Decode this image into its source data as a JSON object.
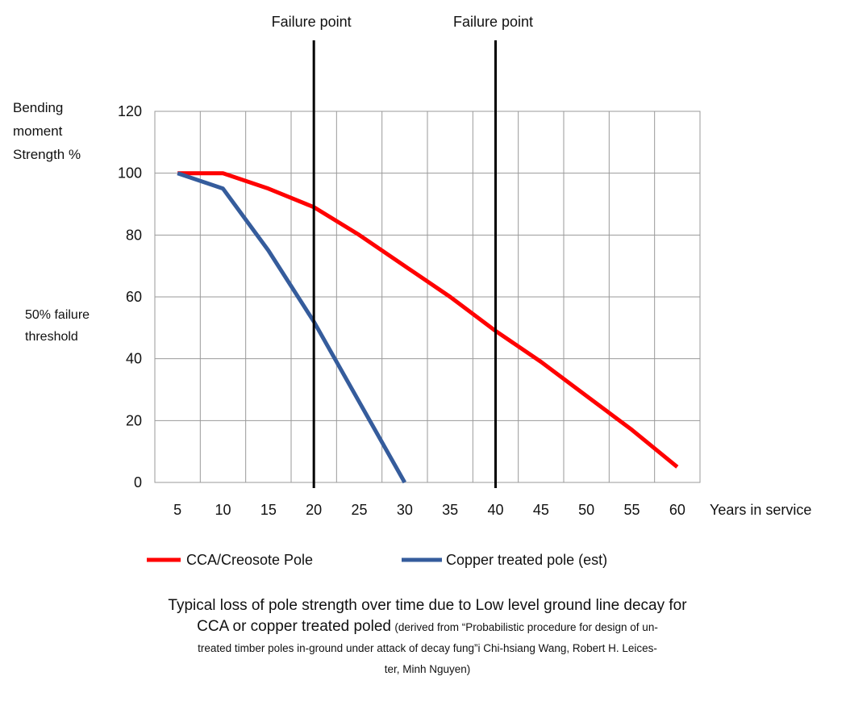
{
  "chart_data": {
    "type": "line",
    "x_label": "Years in service",
    "y_label_lines": [
      "Bending",
      "moment",
      "Strength %"
    ],
    "x_ticks": [
      5,
      10,
      15,
      20,
      25,
      30,
      35,
      40,
      45,
      50,
      55,
      60
    ],
    "y_ticks": [
      0,
      20,
      40,
      60,
      80,
      100,
      120
    ],
    "xlim": [
      2.5,
      62.5
    ],
    "ylim": [
      0,
      120
    ],
    "grid": true,
    "series": [
      {
        "name": "CCA/Creosote Pole",
        "color": "#ff0000",
        "x": [
          5,
          10,
          15,
          20,
          25,
          30,
          35,
          40,
          45,
          50,
          55,
          60
        ],
        "y": [
          100,
          100,
          95,
          89,
          80,
          70,
          60,
          49,
          39,
          28,
          17,
          5
        ]
      },
      {
        "name": "Copper treated pole (est)",
        "color": "#355c9c",
        "x": [
          5,
          10,
          15,
          20,
          25,
          30
        ],
        "y": [
          100,
          95,
          75,
          52,
          26,
          0
        ]
      }
    ],
    "annotations": {
      "failure_lines": [
        {
          "x": 20,
          "label": "Failure point"
        },
        {
          "x": 40,
          "label": "Failure point"
        }
      ],
      "threshold_label_lines": [
        "50% failure",
        "threshold"
      ]
    },
    "legend_placement": "bottom",
    "caption_main_line1": "Typical loss of pole strength over time due to Low level ground line decay for",
    "caption_main_line2": "CCA or copper treated poled",
    "caption_source_part1": "(derived from “Probabilistic procedure for design of un-",
    "caption_source_part2": "treated timber poles in-ground under attack of decay fung”i Chi-hsiang Wang, Robert H. Leices-",
    "caption_source_part3": "ter, Minh Nguyen)"
  }
}
